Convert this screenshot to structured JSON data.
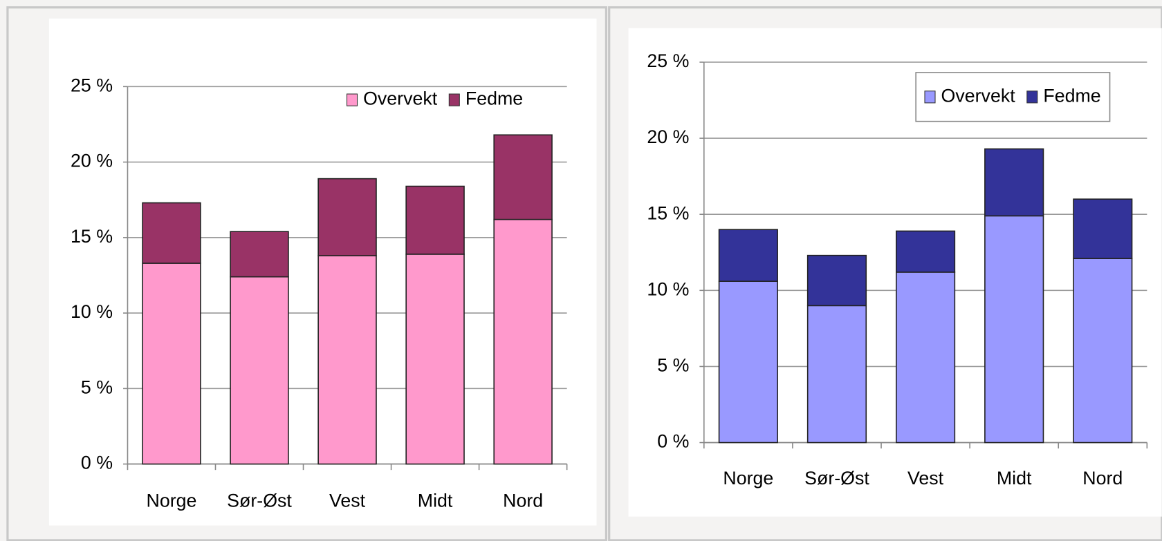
{
  "chart_data": [
    {
      "type": "bar",
      "stacked": true,
      "categories": [
        "Norge",
        "Sør-Øst",
        "Vest",
        "Midt",
        "Nord"
      ],
      "series": [
        {
          "name": "Overvekt",
          "color": "#ff99cc",
          "values": [
            13.3,
            12.4,
            13.8,
            13.9,
            16.2
          ]
        },
        {
          "name": "Fedme",
          "color": "#993366",
          "values": [
            4.0,
            3.0,
            5.1,
            4.5,
            5.6
          ]
        }
      ],
      "ylim": [
        0,
        25
      ],
      "yticks": [
        {
          "value": 0,
          "label": "0 %"
        },
        {
          "value": 5,
          "label": "5 %"
        },
        {
          "value": 10,
          "label": "10 %"
        },
        {
          "value": 15,
          "label": "15 %"
        },
        {
          "value": 20,
          "label": "20 %"
        },
        {
          "value": 25,
          "label": "25 %"
        }
      ],
      "grid": true,
      "legend": "top-right"
    },
    {
      "type": "bar",
      "stacked": true,
      "categories": [
        "Norge",
        "Sør-Øst",
        "Vest",
        "Midt",
        "Nord"
      ],
      "series": [
        {
          "name": "Overvekt",
          "color": "#9999ff",
          "values": [
            10.6,
            9.0,
            11.2,
            14.9,
            12.1
          ]
        },
        {
          "name": "Fedme",
          "color": "#333399",
          "values": [
            3.4,
            3.3,
            2.7,
            4.4,
            3.9
          ]
        }
      ],
      "ylim": [
        0,
        25
      ],
      "yticks": [
        {
          "value": 0,
          "label": "0 %"
        },
        {
          "value": 5,
          "label": "5 %"
        },
        {
          "value": 10,
          "label": "10 %"
        },
        {
          "value": 15,
          "label": "15 %"
        },
        {
          "value": 20,
          "label": "20 %"
        },
        {
          "value": 25,
          "label": "25 %"
        }
      ],
      "grid": true,
      "legend": "top-right"
    }
  ]
}
